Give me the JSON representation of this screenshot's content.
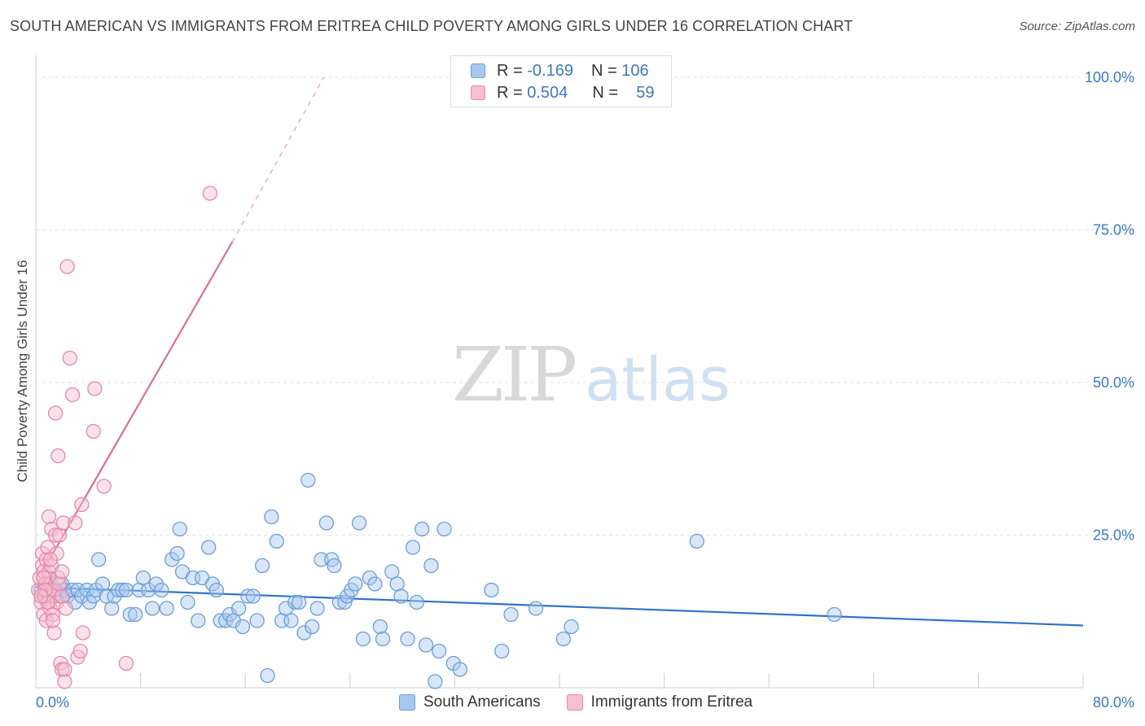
{
  "title": "SOUTH AMERICAN VS IMMIGRANTS FROM ERITREA CHILD POVERTY AMONG GIRLS UNDER 16 CORRELATION CHART",
  "source": "Source: ZipAtlas.com",
  "watermark": {
    "zip": "ZIP",
    "atlas": "atlas"
  },
  "legend": {
    "r_label": "R =",
    "n_label": "N =",
    "rows": [
      {
        "r": "-0.169",
        "n": "106",
        "color": "#a9c8f0",
        "border": "#6b9fd8"
      },
      {
        "r": "0.504",
        "n": "59",
        "color": "#f7bfd0",
        "border": "#e58aa8"
      }
    ]
  },
  "chart_data": {
    "type": "scatter",
    "title": "SOUTH AMERICAN VS IMMIGRANTS FROM ERITREA CHILD POVERTY AMONG GIRLS UNDER 16 CORRELATION CHART",
    "xlabel": "",
    "ylabel": "Child Poverty Among Girls Under 16",
    "xlim": [
      0,
      80
    ],
    "ylim": [
      0,
      100
    ],
    "x_tick_labels": [
      "0.0%",
      "80.0%"
    ],
    "y_tick_labels": [
      "25.0%",
      "50.0%",
      "75.0%",
      "100.0%"
    ],
    "y_ticks": [
      25,
      50,
      75,
      100
    ],
    "grid": true,
    "legend_position": "top-center",
    "series": [
      {
        "name": "South Americans",
        "color": "#6b9fd8",
        "fill": "#a9c8f0",
        "trend": {
          "x": [
            0,
            80
          ],
          "y": [
            16.5,
            10.2
          ]
        },
        "points": [
          [
            0.4,
            16
          ],
          [
            0.6,
            15
          ],
          [
            0.8,
            17
          ],
          [
            1.0,
            18
          ],
          [
            1.2,
            16
          ],
          [
            1.4,
            15
          ],
          [
            1.6,
            16
          ],
          [
            1.8,
            15
          ],
          [
            2.0,
            17
          ],
          [
            2.2,
            16
          ],
          [
            2.4,
            15
          ],
          [
            2.8,
            16
          ],
          [
            3.0,
            14
          ],
          [
            3.2,
            16
          ],
          [
            3.5,
            15
          ],
          [
            3.9,
            16
          ],
          [
            4.1,
            14
          ],
          [
            4.4,
            15
          ],
          [
            4.6,
            16
          ],
          [
            4.8,
            21
          ],
          [
            5.1,
            17
          ],
          [
            5.4,
            15
          ],
          [
            5.8,
            13
          ],
          [
            6.0,
            15
          ],
          [
            6.3,
            16
          ],
          [
            6.6,
            16
          ],
          [
            6.9,
            16
          ],
          [
            7.2,
            12
          ],
          [
            7.6,
            12
          ],
          [
            7.9,
            16
          ],
          [
            8.2,
            18
          ],
          [
            8.6,
            16
          ],
          [
            8.9,
            13
          ],
          [
            9.2,
            17
          ],
          [
            9.6,
            16
          ],
          [
            10.0,
            13
          ],
          [
            10.4,
            21
          ],
          [
            10.8,
            22
          ],
          [
            11.0,
            26
          ],
          [
            11.2,
            19
          ],
          [
            11.6,
            14
          ],
          [
            12.0,
            18
          ],
          [
            12.4,
            11
          ],
          [
            12.7,
            18
          ],
          [
            13.2,
            23
          ],
          [
            13.5,
            17
          ],
          [
            13.8,
            16
          ],
          [
            14.1,
            11
          ],
          [
            14.5,
            11
          ],
          [
            14.8,
            12
          ],
          [
            15.1,
            11
          ],
          [
            15.5,
            13
          ],
          [
            15.8,
            10
          ],
          [
            16.2,
            15
          ],
          [
            16.6,
            15
          ],
          [
            16.9,
            11
          ],
          [
            17.3,
            20
          ],
          [
            17.7,
            2
          ],
          [
            18.0,
            28
          ],
          [
            18.4,
            24
          ],
          [
            18.8,
            11
          ],
          [
            19.1,
            13
          ],
          [
            19.5,
            11
          ],
          [
            19.8,
            14
          ],
          [
            20.1,
            14
          ],
          [
            20.5,
            9
          ],
          [
            20.8,
            34
          ],
          [
            21.1,
            10
          ],
          [
            21.5,
            13
          ],
          [
            21.8,
            21
          ],
          [
            22.2,
            27
          ],
          [
            22.6,
            21
          ],
          [
            22.8,
            20
          ],
          [
            23.2,
            14
          ],
          [
            23.6,
            14
          ],
          [
            23.8,
            15
          ],
          [
            24.1,
            16
          ],
          [
            24.4,
            17
          ],
          [
            24.7,
            27
          ],
          [
            25.0,
            8
          ],
          [
            25.5,
            18
          ],
          [
            25.9,
            17
          ],
          [
            26.3,
            10
          ],
          [
            26.5,
            8
          ],
          [
            27.2,
            19
          ],
          [
            27.6,
            17
          ],
          [
            27.9,
            15
          ],
          [
            28.4,
            8
          ],
          [
            28.8,
            23
          ],
          [
            29.1,
            14
          ],
          [
            29.5,
            26
          ],
          [
            29.8,
            7
          ],
          [
            30.2,
            20
          ],
          [
            30.5,
            1
          ],
          [
            30.8,
            6
          ],
          [
            31.2,
            26
          ],
          [
            31.9,
            4
          ],
          [
            32.4,
            3
          ],
          [
            34.8,
            16
          ],
          [
            35.6,
            6
          ],
          [
            36.3,
            12
          ],
          [
            38.2,
            13
          ],
          [
            40.3,
            8
          ],
          [
            40.9,
            10
          ],
          [
            50.5,
            24
          ],
          [
            61.0,
            12
          ]
        ]
      },
      {
        "name": "Immigrants from Eritrea",
        "color": "#e58aa8",
        "fill": "#f7bfd0",
        "trend": {
          "x": [
            0.5,
            15.0
          ],
          "y": [
            19.0,
            73.0
          ]
        },
        "trend_dashed": {
          "x": [
            15.0,
            22.0
          ],
          "y": [
            73.0,
            100.0
          ]
        },
        "points": [
          [
            0.2,
            16
          ],
          [
            0.3,
            18
          ],
          [
            0.4,
            14
          ],
          [
            0.5,
            20
          ],
          [
            0.5,
            22
          ],
          [
            0.6,
            12
          ],
          [
            0.6,
            19
          ],
          [
            0.7,
            15
          ],
          [
            0.7,
            17
          ],
          [
            0.8,
            11
          ],
          [
            0.8,
            21
          ],
          [
            0.9,
            16
          ],
          [
            0.9,
            23
          ],
          [
            1.0,
            14
          ],
          [
            1.0,
            19
          ],
          [
            1.0,
            28
          ],
          [
            1.1,
            13
          ],
          [
            1.1,
            17
          ],
          [
            1.2,
            20
          ],
          [
            1.2,
            26
          ],
          [
            1.3,
            15
          ],
          [
            1.3,
            12
          ],
          [
            1.4,
            9
          ],
          [
            1.4,
            16
          ],
          [
            1.5,
            25
          ],
          [
            1.6,
            14
          ],
          [
            1.6,
            22
          ],
          [
            1.7,
            18
          ],
          [
            1.8,
            17
          ],
          [
            1.8,
            25
          ],
          [
            1.9,
            4
          ],
          [
            2.0,
            3
          ],
          [
            2.0,
            15
          ],
          [
            2.1,
            27
          ],
          [
            2.2,
            3
          ],
          [
            2.4,
            69
          ],
          [
            2.6,
            54
          ],
          [
            2.8,
            48
          ],
          [
            1.5,
            45
          ],
          [
            1.7,
            38
          ],
          [
            3.0,
            27
          ],
          [
            3.2,
            5
          ],
          [
            3.4,
            6
          ],
          [
            3.6,
            9
          ],
          [
            2.3,
            13
          ],
          [
            2.0,
            19
          ],
          [
            1.3,
            11
          ],
          [
            0.9,
            14
          ],
          [
            0.6,
            18
          ],
          [
            4.5,
            49
          ],
          [
            4.4,
            42
          ],
          [
            3.5,
            30
          ],
          [
            5.2,
            33
          ],
          [
            6.9,
            4
          ],
          [
            13.3,
            81
          ],
          [
            2.2,
            1
          ],
          [
            1.1,
            21
          ],
          [
            0.7,
            16
          ],
          [
            0.4,
            15
          ]
        ]
      }
    ]
  }
}
